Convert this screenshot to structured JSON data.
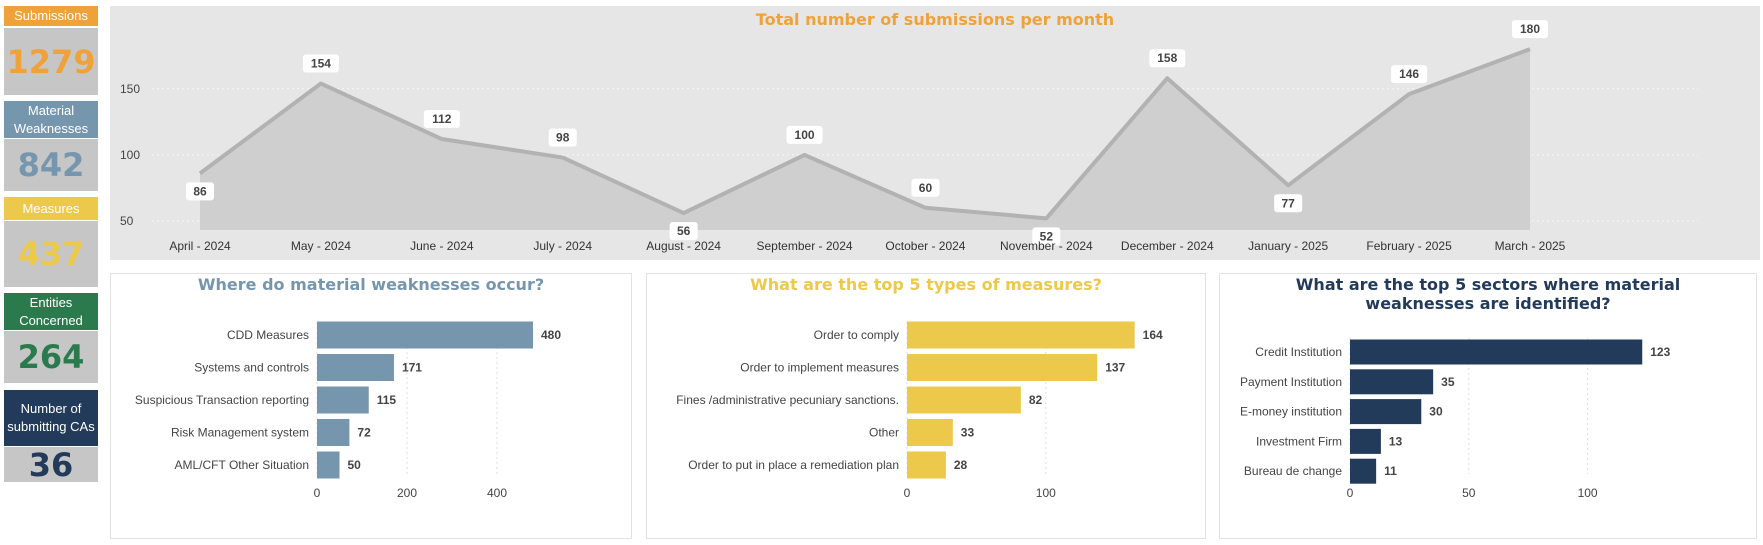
{
  "colors": {
    "orange": "#f0a23a",
    "steel": "#7696ae",
    "yellow": "#ecc94b",
    "green": "#2a7a4e",
    "navy": "#233b5a",
    "kpi_bg": "#c6c6c6",
    "line": "#b2b2b2",
    "area": "#cfcfcf",
    "panel_bg": "#e6e6e6"
  },
  "kpis": [
    {
      "label": "Submissions",
      "value": "1279",
      "color": "#f0a23a"
    },
    {
      "label": "Material Weaknesses",
      "value": "842",
      "color": "#7696ae"
    },
    {
      "label": "Measures",
      "value": "437",
      "color": "#ecc94b"
    },
    {
      "label": "Entities Concerned",
      "value": "264",
      "color": "#2a7a4e"
    },
    {
      "label": "Number of submitting CAs",
      "value": "36",
      "color": "#233b5a"
    }
  ],
  "chart_data": [
    {
      "type": "area",
      "title": "Total number of submissions per month",
      "categories": [
        "April - 2024",
        "May - 2024",
        "June - 2024",
        "July - 2024",
        "August - 2024",
        "September - 2024",
        "October - 2024",
        "November - 2024",
        "December - 2024",
        "January - 2025",
        "February - 2025",
        "March - 2025"
      ],
      "values": [
        86,
        154,
        112,
        98,
        56,
        100,
        60,
        52,
        158,
        77,
        146,
        180
      ],
      "yticks": [
        50,
        100,
        150
      ],
      "ylim": [
        40,
        180
      ],
      "grid": true
    },
    {
      "type": "bar",
      "orientation": "horizontal",
      "title": "Where do material weaknesses occur?",
      "categories": [
        "CDD Measures",
        "Systems and controls",
        "Suspicious Transaction reporting",
        "Risk Management system",
        "AML/CFT Other Situation"
      ],
      "values": [
        480,
        171,
        115,
        72,
        50
      ],
      "xticks": [
        0,
        200,
        400
      ],
      "xlim": [
        0,
        500
      ]
    },
    {
      "type": "bar",
      "orientation": "horizontal",
      "title": "What are the top 5 types of measures?",
      "categories": [
        "Order to comply",
        "Order to implement measures",
        "Fines /administrative pecuniary sanctions.",
        "Other",
        "Order to put in place a remediation plan"
      ],
      "values": [
        164,
        137,
        82,
        33,
        28
      ],
      "xticks": [
        0,
        100
      ],
      "xlim": [
        0,
        170
      ]
    },
    {
      "type": "bar",
      "orientation": "horizontal",
      "title": "What are the top 5 sectors where material weaknesses are identified?",
      "categories": [
        "Credit Institution",
        "Payment Institution",
        "E-money institution",
        "Investment Firm",
        "Bureau de change"
      ],
      "values": [
        123,
        35,
        30,
        13,
        11
      ],
      "xticks": [
        0,
        50,
        100
      ],
      "xlim": [
        0,
        125
      ]
    }
  ]
}
